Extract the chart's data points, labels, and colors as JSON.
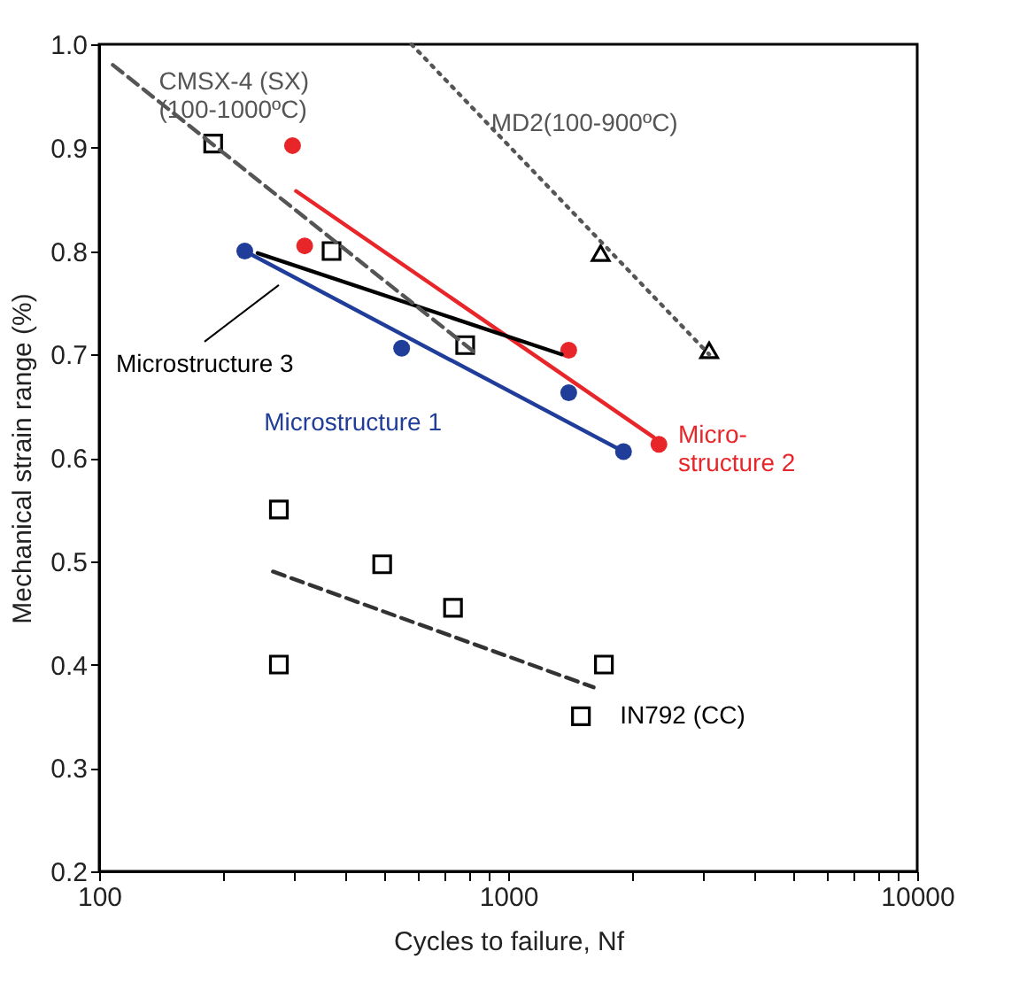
{
  "chart_data": {
    "type": "scatter",
    "xlabel": "Cycles to failure, Nf",
    "ylabel": "Mechanical strain range (%)",
    "log": "x",
    "xlim": [
      100,
      10000
    ],
    "ylim": [
      0.2,
      1.0
    ],
    "xticks": [
      100,
      {
        "value": 200,
        "label": null
      },
      {
        "value": 300,
        "label": null
      },
      {
        "value": 400,
        "label": null
      },
      {
        "value": 500,
        "label": null
      },
      {
        "value": 600,
        "label": null
      },
      {
        "value": 700,
        "label": null
      },
      {
        "value": 800,
        "label": null
      },
      {
        "value": 900,
        "label": null
      },
      1000,
      {
        "value": 2000,
        "label": null
      },
      {
        "value": 3000,
        "label": null
      },
      {
        "value": 4000,
        "label": null
      },
      {
        "value": 5000,
        "label": null
      },
      {
        "value": 6000,
        "label": null
      },
      {
        "value": 7000,
        "label": null
      },
      {
        "value": 8000,
        "label": null
      },
      {
        "value": 9000,
        "label": null
      },
      10000
    ],
    "yticks": [
      0.2,
      0.3,
      0.4,
      0.5,
      0.6,
      0.7,
      0.8,
      0.9,
      {
        "value": 1.0,
        "label": "1.0"
      }
    ],
    "grid": false,
    "series": [
      {
        "name": "IN792 (CC)",
        "marker": "square",
        "color": "#000000",
        "x": [
          275,
          275,
          492,
          733,
          1714,
          1506
        ],
        "values": [
          0.55,
          0.4,
          0.497,
          0.455,
          0.4,
          0.35
        ]
      },
      {
        "marker": "square",
        "color": "#000000",
        "x": [
          190,
          370,
          785
        ],
        "values": [
          0.904,
          0.8,
          0.709
        ]
      },
      {
        "marker": "triangle",
        "color": "#000000",
        "x": [
          1683,
          3100
        ],
        "values": [
          0.798,
          0.704
        ]
      },
      {
        "marker": "circle",
        "color": "#e8262a",
        "x": [
          297,
          318,
          1406,
          2336
        ],
        "values": [
          0.902,
          0.805,
          0.704,
          0.613
        ]
      },
      {
        "marker": "circle",
        "color": "#1f3d99",
        "x": [
          227,
          549,
          1406,
          1914
        ],
        "values": [
          0.8,
          0.706,
          0.663,
          0.606
        ]
      },
      {
        "type": "line",
        "name": "Micro-\nstructure 2",
        "line_style": "solid",
        "color": "#e8262a",
        "x": [
          303,
          2265
        ],
        "values": [
          0.858,
          0.62
        ]
      },
      {
        "type": "line",
        "name": "Microstructure 1",
        "line_style": "solid",
        "color": "#1f3d99",
        "x": [
          227,
          1914
        ],
        "values": [
          0.8,
          0.606
        ]
      },
      {
        "type": "line",
        "name": "Microstructure 3",
        "line_style": "solid",
        "color": "#000000",
        "x": [
          244,
          1352
        ],
        "values": [
          0.798,
          0.7
        ]
      },
      {
        "type": "line",
        "name": "CMSX-4 (SX)\n(100-1000ºC)",
        "line_style": "dashed",
        "color": "#555555",
        "x": [
          108,
          840
        ],
        "values": [
          0.98,
          0.7
        ]
      },
      {
        "type": "line",
        "name": "MD2(100-900ºC)",
        "line_style": "dotted",
        "color": "#555555",
        "x": [
          580,
          3100
        ],
        "values": [
          1.0,
          0.7
        ]
      },
      {
        "type": "line",
        "line_style": "dashed",
        "color": "#333333",
        "x": [
          266,
          1618
        ],
        "values": [
          0.49,
          0.378
        ]
      }
    ]
  }
}
